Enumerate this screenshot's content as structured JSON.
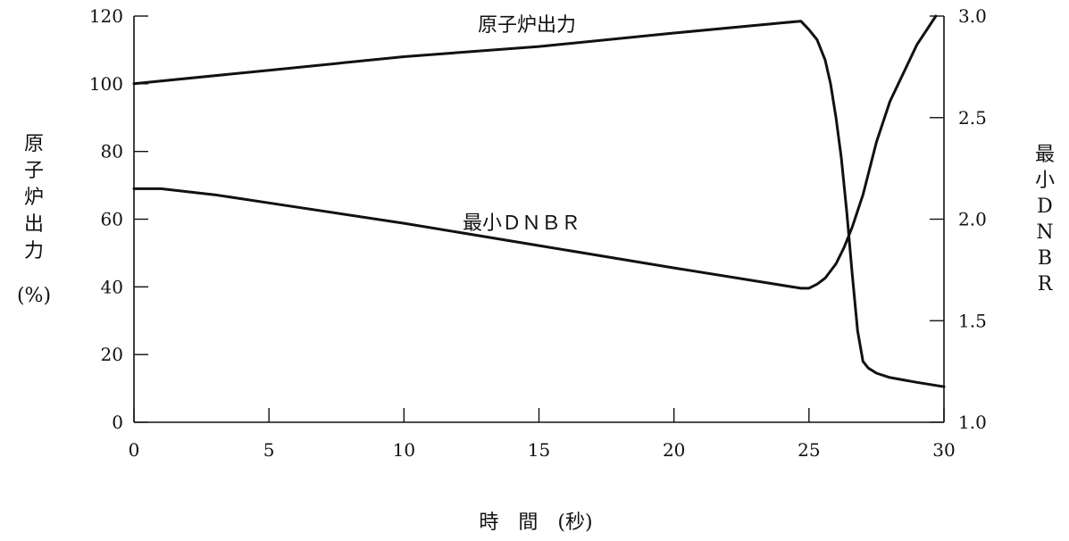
{
  "chart_data": {
    "type": "line",
    "xlabel": "時　間　(秒)",
    "ylabel_left_chars": [
      "原",
      "子",
      "炉",
      "出",
      "力"
    ],
    "ylabel_left_unit": "(%)",
    "ylabel_right_chars": [
      "最",
      "小",
      "D",
      "N",
      "B",
      "R"
    ],
    "xlim": [
      0,
      30
    ],
    "ylim_left": [
      0,
      120
    ],
    "ylim_right": [
      1.0,
      3.0
    ],
    "x_ticks": [
      "0",
      "5",
      "10",
      "15",
      "20",
      "25",
      "30"
    ],
    "y_left_ticks": [
      "0",
      "20",
      "40",
      "60",
      "80",
      "100",
      "120"
    ],
    "y_right_ticks": [
      "1.0",
      "1.5",
      "2.0",
      "2.5",
      "3.0"
    ],
    "grid": false,
    "series": [
      {
        "name": "原子炉出力",
        "axis": "left",
        "x": [
          0,
          5,
          10,
          15,
          20,
          24.0,
          24.7,
          25.0,
          25.3,
          25.6,
          25.8,
          26.0,
          26.2,
          26.4,
          26.6,
          26.8,
          27.0,
          27.2,
          27.5,
          28.0,
          29.0,
          30.0
        ],
        "y": [
          100,
          104,
          108,
          111,
          115,
          118,
          118.5,
          116,
          113,
          107,
          100,
          90,
          78,
          62,
          44,
          27,
          18,
          16,
          14.5,
          13.2,
          11.8,
          10.5
        ]
      },
      {
        "name": "最小ＤＮＢＲ",
        "axis": "right",
        "x": [
          0,
          1,
          3,
          5,
          10,
          15,
          20,
          24.7,
          25.0,
          25.3,
          25.6,
          26.0,
          26.3,
          26.6,
          27.0,
          27.5,
          28.0,
          29.0,
          29.7
        ],
        "y": [
          2.15,
          2.15,
          2.12,
          2.08,
          1.98,
          1.87,
          1.76,
          1.66,
          1.66,
          1.68,
          1.71,
          1.78,
          1.86,
          1.96,
          2.12,
          2.38,
          2.58,
          2.86,
          3.0
        ]
      }
    ]
  }
}
